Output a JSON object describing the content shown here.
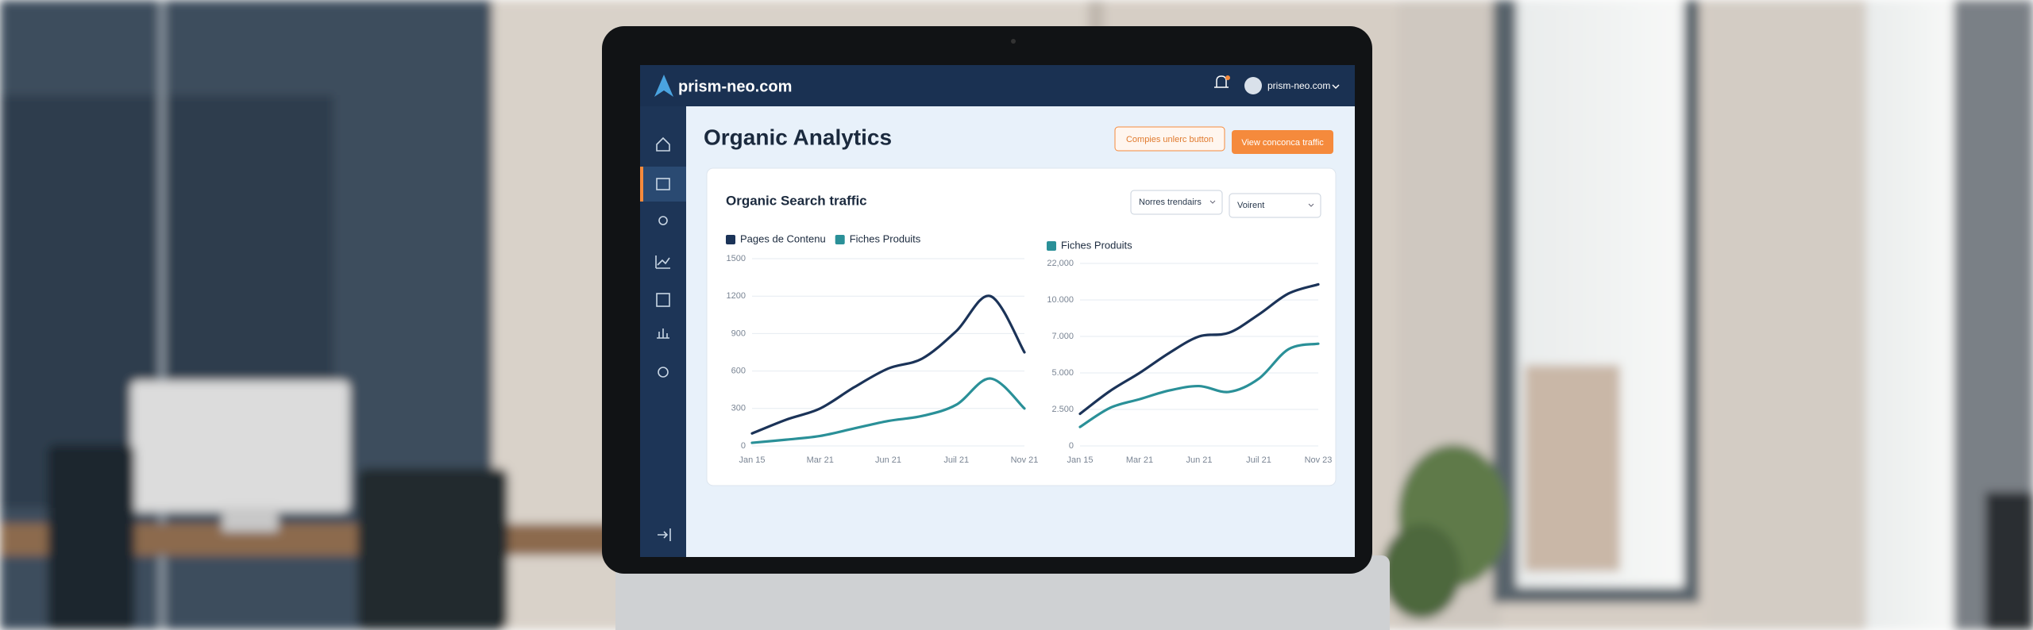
{
  "header": {
    "logo": "prism-neo.com",
    "user": "prism-neo.com"
  },
  "page": {
    "title": "Organic Analytics",
    "buttons": [
      "Compies unlerc button",
      "View conconca traffic"
    ]
  },
  "card": {
    "title": "Organic Search traffic",
    "filters": [
      "Norres trendairs",
      "Voirent"
    ]
  },
  "chart_data": [
    {
      "type": "line",
      "categories": [
        "Jan 15",
        null,
        "Mar 21",
        null,
        "Jun 21",
        null,
        "Juil 21",
        null,
        "Nov 21"
      ],
      "series": [
        {
          "name": "Pages de Contenu",
          "color": "#1b3358",
          "values": [
            100,
            210,
            300,
            470,
            620,
            700,
            920,
            1200,
            750
          ]
        },
        {
          "name": "Fiches Produits",
          "color": "#2a9098",
          "values": [
            25,
            50,
            80,
            140,
            200,
            240,
            330,
            540,
            300
          ]
        }
      ],
      "ylim": [
        0,
        1500
      ],
      "yticks": [
        0,
        300,
        600,
        900,
        1200,
        1500
      ],
      "grid": true
    },
    {
      "type": "line",
      "categories": [
        "Jan 15",
        null,
        "Mar 21",
        null,
        "Jun 21",
        null,
        "Juil 21",
        null,
        "Nov 23"
      ],
      "series": [
        {
          "color": "#1b3358",
          "values": [
            2200,
            3750,
            5000,
            6100,
            7000,
            7300,
            8800,
            12100,
            15100
          ]
        },
        {
          "name": "Fiches Produits",
          "color": "#2a9098",
          "values": [
            1300,
            2600,
            3200,
            3800,
            4100,
            3700,
            4600,
            6300,
            6600
          ]
        }
      ],
      "ylim": [
        0,
        22000
      ],
      "yticks": [
        0,
        {
          "value": 2500,
          "label": "2.500"
        },
        {
          "value": 5000,
          "label": "5.000"
        },
        {
          "value": 7000,
          "label": "7.000"
        },
        {
          "value": 10000,
          "label": "10.000"
        },
        {
          "value": 22000,
          "label": "22,000"
        }
      ],
      "grid": true
    }
  ]
}
